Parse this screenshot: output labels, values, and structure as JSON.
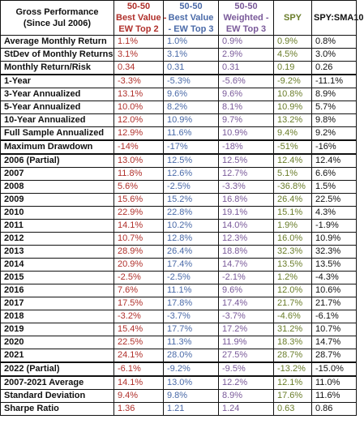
{
  "colors": {
    "ew_top2": "#b0302b",
    "ew_top3": "#4a6aa8",
    "weighted": "#7a5a9a",
    "spy": "#6a7d2a",
    "spy_sma": "#111111"
  },
  "chart_data": {
    "type": "table",
    "headers": [
      [
        "Gross Performance",
        "(Since Jul 2006)"
      ],
      [
        "50-50",
        "Best Value -",
        "EW Top 2"
      ],
      [
        "50-50",
        "Best Value",
        "- EW Top 3"
      ],
      [
        "50-50",
        "Weighted -",
        "EW Top 3"
      ],
      [
        "SPY"
      ],
      [
        "SPY:SMA10"
      ]
    ],
    "rows": [
      {
        "label": "Average Monthly Return",
        "values": [
          "1.1%",
          "1.0%",
          "0.9%",
          "0.9%",
          "0.8%"
        ]
      },
      {
        "label": "StDev of Monthly Returns",
        "values": [
          "3.1%",
          "3.1%",
          "2.9%",
          "4.5%",
          "3.0%"
        ]
      },
      {
        "label": "Monthly Return/Risk",
        "values": [
          "0.34",
          "0.31",
          "0.31",
          "0.19",
          "0.26"
        ]
      },
      {
        "label": "1-Year",
        "values": [
          "-3.3%",
          "-5.3%",
          "-5.6%",
          "-9.2%",
          "-11.1%"
        ]
      },
      {
        "label": "3-Year Annualized",
        "values": [
          "13.1%",
          "9.6%",
          "9.6%",
          "10.8%",
          "8.9%"
        ]
      },
      {
        "label": "5-Year Annualized",
        "values": [
          "10.0%",
          "8.2%",
          "8.1%",
          "10.9%",
          "5.7%"
        ]
      },
      {
        "label": "10-Year Annualized",
        "values": [
          "12.0%",
          "10.9%",
          "9.7%",
          "13.2%",
          "9.8%"
        ]
      },
      {
        "label": "Full Sample Annualized",
        "values": [
          "12.9%",
          "11.6%",
          "10.9%",
          "9.4%",
          "9.2%"
        ]
      },
      {
        "label": "Maximum Drawdown",
        "values": [
          "-14%",
          "-17%",
          "-18%",
          "-51%",
          "-16%"
        ]
      },
      {
        "label": "2006 (Partial)",
        "values": [
          "13.0%",
          "12.5%",
          "12.5%",
          "12.4%",
          "12.4%"
        ]
      },
      {
        "label": "2007",
        "values": [
          "11.8%",
          "12.6%",
          "12.7%",
          "5.1%",
          "6.6%"
        ]
      },
      {
        "label": "2008",
        "values": [
          "5.6%",
          "-2.5%",
          "-3.3%",
          "-36.8%",
          "1.5%"
        ]
      },
      {
        "label": "2009",
        "values": [
          "15.6%",
          "15.2%",
          "16.8%",
          "26.4%",
          "22.5%"
        ]
      },
      {
        "label": "2010",
        "values": [
          "22.9%",
          "22.8%",
          "19.1%",
          "15.1%",
          "4.3%"
        ]
      },
      {
        "label": "2011",
        "values": [
          "14.1%",
          "10.2%",
          "14.0%",
          "1.9%",
          "-1.9%"
        ]
      },
      {
        "label": "2012",
        "values": [
          "10.7%",
          "12.8%",
          "12.3%",
          "16.0%",
          "10.9%"
        ]
      },
      {
        "label": "2013",
        "values": [
          "28.9%",
          "26.4%",
          "18.8%",
          "32.3%",
          "32.3%"
        ]
      },
      {
        "label": "2014",
        "values": [
          "20.9%",
          "17.4%",
          "14.7%",
          "13.5%",
          "13.5%"
        ]
      },
      {
        "label": "2015",
        "values": [
          "-2.5%",
          "-2.5%",
          "-2.1%",
          "1.2%",
          "-4.3%"
        ]
      },
      {
        "label": "2016",
        "values": [
          "7.6%",
          "11.1%",
          "9.6%",
          "12.0%",
          "10.6%"
        ]
      },
      {
        "label": "2017",
        "values": [
          "17.5%",
          "17.8%",
          "17.4%",
          "21.7%",
          "21.7%"
        ]
      },
      {
        "label": "2018",
        "values": [
          "-3.2%",
          "-3.7%",
          "-3.7%",
          "-4.6%",
          "-6.1%"
        ]
      },
      {
        "label": "2019",
        "values": [
          "15.4%",
          "17.7%",
          "17.2%",
          "31.2%",
          "10.7%"
        ]
      },
      {
        "label": "2020",
        "values": [
          "22.5%",
          "11.3%",
          "11.9%",
          "18.3%",
          "14.7%"
        ]
      },
      {
        "label": "2021",
        "values": [
          "24.1%",
          "28.0%",
          "27.5%",
          "28.7%",
          "28.7%"
        ]
      },
      {
        "label": "2022 (Partial)",
        "values": [
          "-6.1%",
          "-9.2%",
          "-9.5%",
          "-13.2%",
          "-15.0%"
        ]
      },
      {
        "label": "2007-2021 Average",
        "values": [
          "14.1%",
          "13.0%",
          "12.2%",
          "12.1%",
          "11.0%"
        ]
      },
      {
        "label": "Standard Deviation",
        "values": [
          "9.4%",
          "9.8%",
          "8.9%",
          "17.6%",
          "11.6%"
        ]
      },
      {
        "label": "Sharpe Ratio",
        "values": [
          "1.36",
          "1.21",
          "1.24",
          "0.63",
          "0.86"
        ]
      }
    ]
  }
}
